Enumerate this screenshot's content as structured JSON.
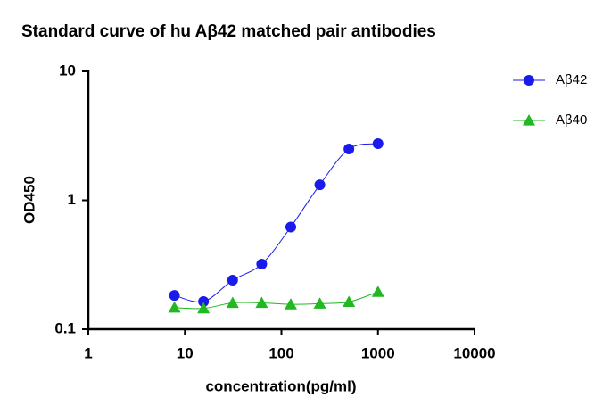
{
  "chart_data": {
    "type": "scatter",
    "title": "Standard curve of hu Aβ42 matched pair antibodies",
    "x_label": "concentration(pg/ml)",
    "y_label": "OD450",
    "x_scale": "log",
    "y_scale": "log",
    "xlim": [
      1,
      10000
    ],
    "xticks": [
      1,
      10,
      100,
      1000,
      10000
    ],
    "ylim": [
      0.1,
      10
    ],
    "yticks": [
      0.1,
      1,
      10
    ],
    "legend_position": "right",
    "smooth_line": true,
    "series": [
      {
        "name": "Aβ42",
        "color": "#1a1aeb",
        "marker": "circle",
        "x": [
          7.8,
          15.6,
          31.25,
          62.5,
          125,
          250,
          500,
          1000
        ],
        "values": [
          0.183,
          0.164,
          0.24,
          0.32,
          0.62,
          1.32,
          2.5,
          2.75
        ]
      },
      {
        "name": "Aβ40",
        "color": "#22b822",
        "marker": "triangle",
        "x": [
          7.8,
          15.6,
          31.25,
          62.5,
          125,
          250,
          500,
          1000
        ],
        "values": [
          0.147,
          0.145,
          0.16,
          0.16,
          0.156,
          0.158,
          0.163,
          0.195
        ]
      }
    ]
  }
}
